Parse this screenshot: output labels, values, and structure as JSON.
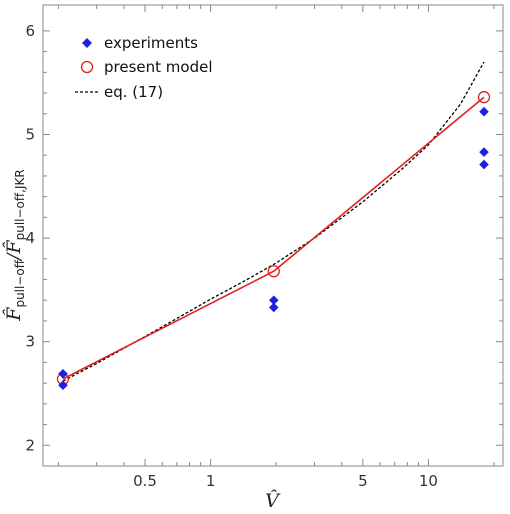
{
  "chart_data": {
    "type": "scatter",
    "x_scale": "log",
    "xlim": [
      0.17,
      22
    ],
    "ylim": [
      1.8,
      6.25
    ],
    "x_ticks": [
      0.5,
      1,
      5,
      10
    ],
    "x_tick_labels": [
      "0.5",
      "1",
      "5",
      "10"
    ],
    "y_ticks": [
      2,
      3,
      4,
      5,
      6
    ],
    "y_tick_labels": [
      "2",
      "3",
      "4",
      "5",
      "6"
    ],
    "grid": false,
    "legend_position": "top-left",
    "xlabel": {
      "main": "V̂",
      "sub": ""
    },
    "ylabel": {
      "main1": "F̂",
      "sub1": "pull−off",
      "sep": "/F̂",
      "sub2": "pull−off,JKR"
    },
    "series": [
      {
        "name": "experiments",
        "style": "marker-diamond",
        "color": "#1f1fe0",
        "points": [
          {
            "x": 0.21,
            "y": 2.69
          },
          {
            "x": 0.21,
            "y": 2.58
          },
          {
            "x": 1.95,
            "y": 3.4
          },
          {
            "x": 1.95,
            "y": 3.33
          },
          {
            "x": 18.0,
            "y": 5.22
          },
          {
            "x": 18.0,
            "y": 4.83
          },
          {
            "x": 18.0,
            "y": 4.71
          }
        ]
      },
      {
        "name": "present model",
        "style": "line-open-circle",
        "color": "#e02020",
        "points": [
          {
            "x": 0.21,
            "y": 2.64
          },
          {
            "x": 1.95,
            "y": 3.68
          },
          {
            "x": 18.0,
            "y": 5.36
          }
        ]
      },
      {
        "name": "eq. (17)",
        "style": "dashed-line",
        "color": "#000000",
        "points": [
          {
            "x": 0.21,
            "y": 2.62
          },
          {
            "x": 0.3,
            "y": 2.79
          },
          {
            "x": 0.5,
            "y": 3.05
          },
          {
            "x": 0.75,
            "y": 3.26
          },
          {
            "x": 1.0,
            "y": 3.41
          },
          {
            "x": 1.5,
            "y": 3.61
          },
          {
            "x": 2.0,
            "y": 3.76
          },
          {
            "x": 3.0,
            "y": 4.0
          },
          {
            "x": 5.0,
            "y": 4.35
          },
          {
            "x": 7.5,
            "y": 4.66
          },
          {
            "x": 10.0,
            "y": 4.9
          },
          {
            "x": 14.0,
            "y": 5.29
          },
          {
            "x": 18.0,
            "y": 5.7
          }
        ]
      }
    ]
  }
}
